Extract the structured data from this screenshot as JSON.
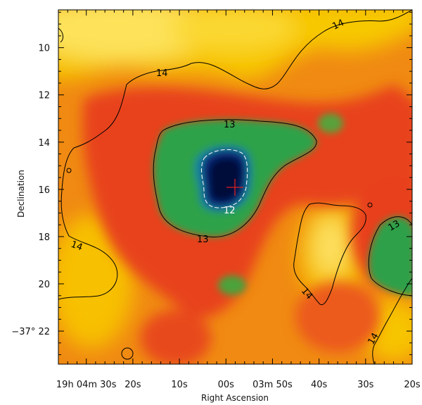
{
  "chart_data": {
    "type": "heatmap",
    "title": "",
    "xlabel": "Right Ascension",
    "ylabel": "Declination",
    "x_tick_labels": [
      {
        "label": "19h 04m 30s",
        "value": 30
      },
      {
        "label": "20s",
        "value": 20
      },
      {
        "label": "10s",
        "value": 10
      },
      {
        "label": "00s",
        "value": 0
      },
      {
        "label": "03m 50s",
        "value": -10
      },
      {
        "label": "40s",
        "value": -20
      },
      {
        "label": "30s",
        "value": -30
      },
      {
        "label": "20s",
        "value": -40
      }
    ],
    "y_ticks": [
      10,
      12,
      14,
      16,
      18,
      20,
      22
    ],
    "y_tick_labels": [
      "10",
      "12",
      "14",
      "16",
      "18",
      "20",
      "−37° 22"
    ],
    "xlim": [
      36,
      -40
    ],
    "ylim": [
      8.4,
      23.4
    ],
    "colormap": [
      "#fff27a",
      "#f6c400",
      "#f08c00",
      "#e83e1e",
      "#e82a18",
      "#28a24a",
      "#1a8e9e",
      "#0b2a7a",
      "#020a2e"
    ],
    "contour_levels": [
      {
        "level": 12,
        "color": "#ffffff",
        "dashed": true
      },
      {
        "level": 13,
        "color": "#000000",
        "dashed": false
      },
      {
        "level": 14,
        "color": "#000000",
        "dashed": false
      }
    ],
    "contour_labels": [
      "14",
      "14",
      "14",
      "14",
      "13",
      "13",
      "13",
      "12",
      "14"
    ],
    "marker": {
      "symbol": "+",
      "color": "#e02020"
    }
  }
}
